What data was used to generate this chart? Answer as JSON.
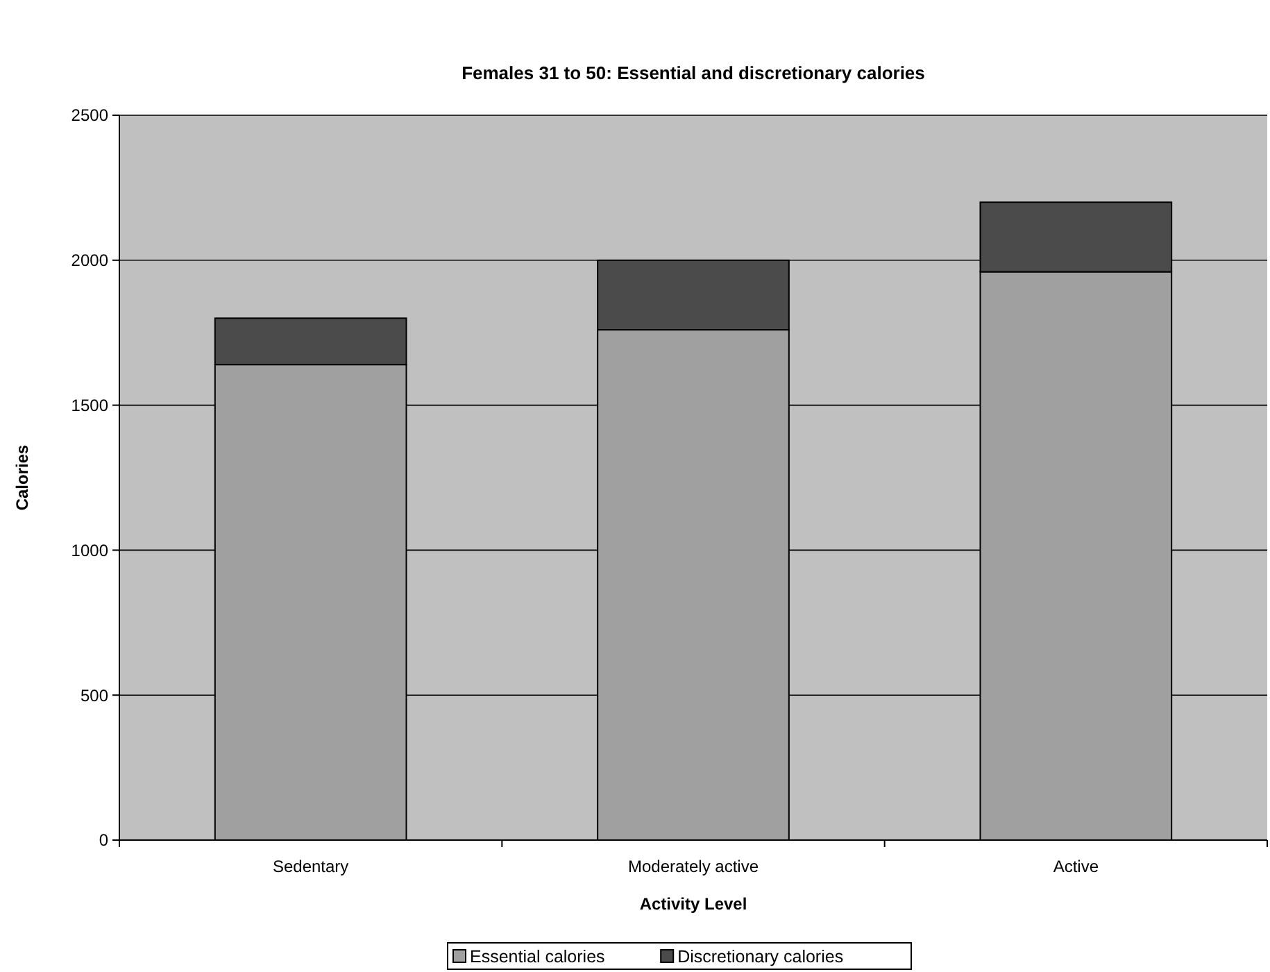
{
  "chart_data": {
    "type": "bar",
    "title": "Females 31 to 50:  Essential and discretionary calories",
    "xlabel": "Activity Level",
    "ylabel": "Calories",
    "categories": [
      "Sedentary",
      "Moderately active",
      "Active"
    ],
    "stacked": true,
    "series": [
      {
        "name": "Essential calories",
        "color": "#a0a0a0",
        "values": [
          1640,
          1760,
          1960
        ]
      },
      {
        "name": "Discretionary calories",
        "color": "#4b4b4b",
        "values": [
          160,
          240,
          240
        ]
      }
    ],
    "ylim": [
      0,
      2500
    ],
    "yticks": [
      0,
      500,
      1000,
      1500,
      2000,
      2500
    ],
    "grid": "y",
    "legend": "bottom"
  }
}
